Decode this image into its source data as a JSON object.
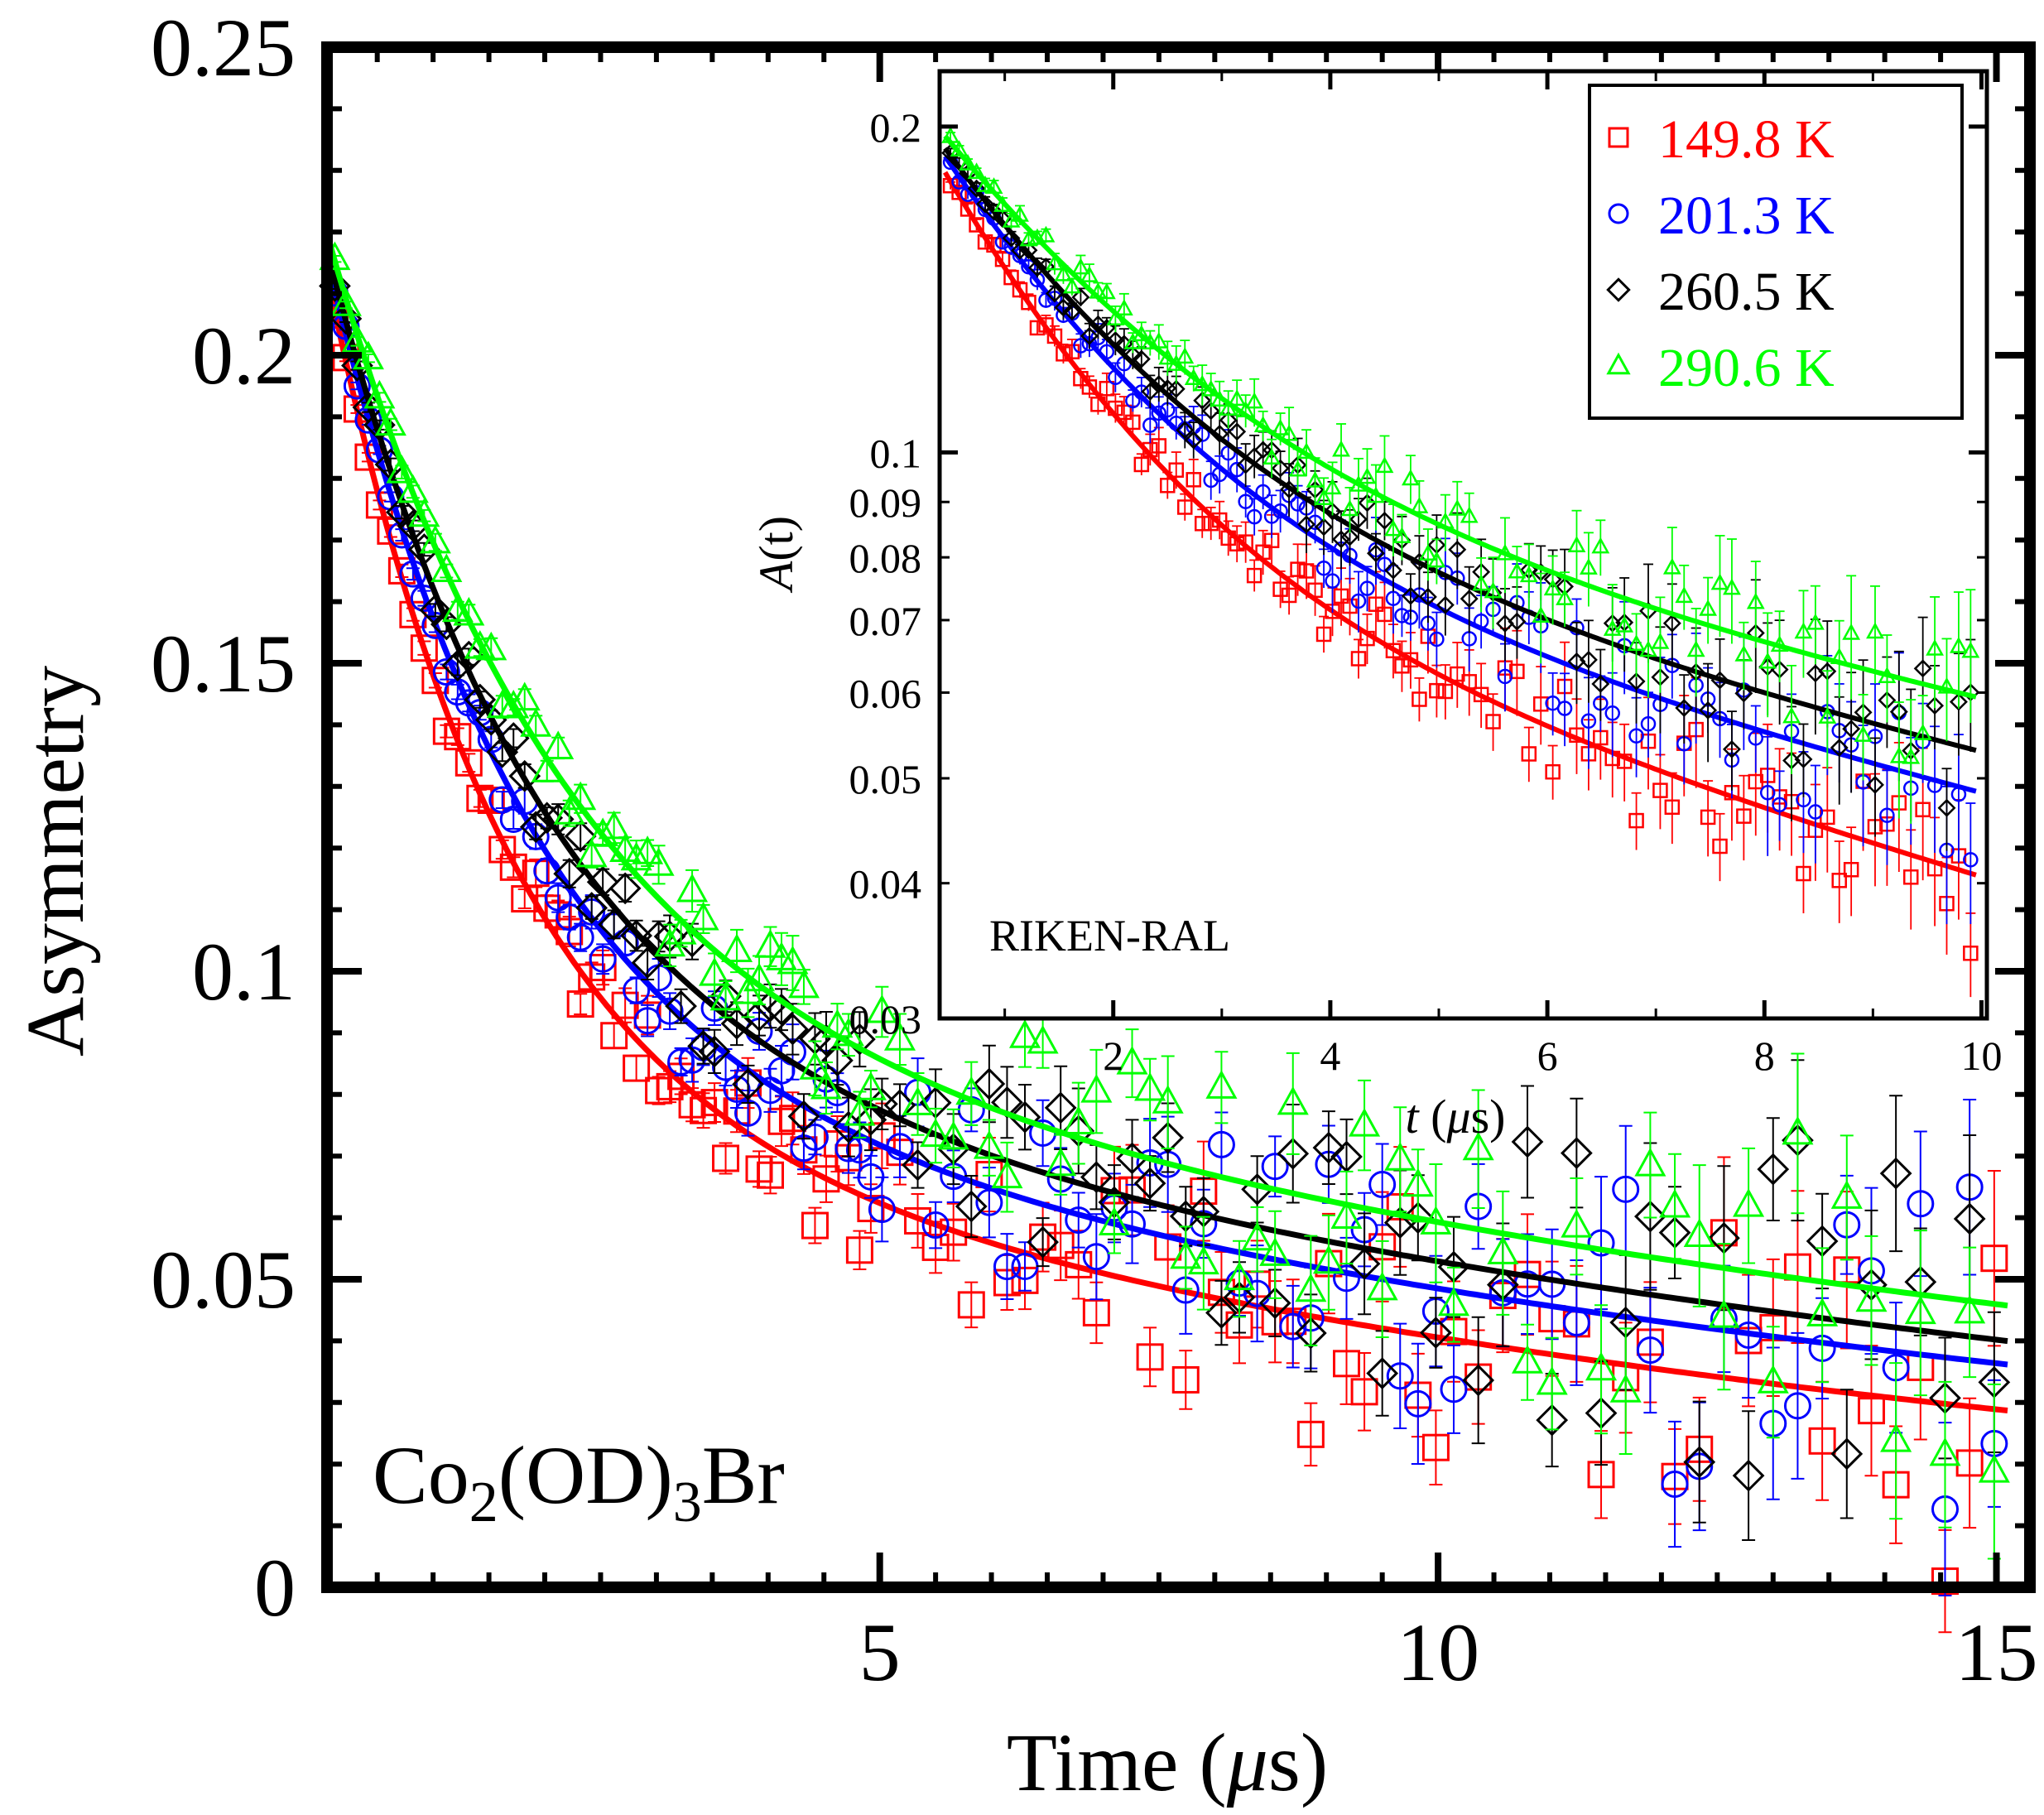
{
  "chart_data": [
    {
      "type": "scatter",
      "panel": "main",
      "xlabel_text": "Time (",
      "xlabel_mu": "μ",
      "xlabel_unit": "s)",
      "ylabel": "Asymmetry",
      "xlim": [
        0.05,
        15.3
      ],
      "ylim": [
        0,
        0.25
      ],
      "x_ticks": [
        5,
        10,
        15
      ],
      "x_tick_labels": [
        "5",
        "10",
        "15"
      ],
      "y_ticks": [
        0,
        0.05,
        0.1,
        0.15,
        0.2,
        0.25
      ],
      "y_tick_labels": [
        "0",
        "0.05",
        "0.1",
        "0.15",
        "0.2",
        "0.25"
      ],
      "annotation": {
        "base": "Co",
        "sub1": "2",
        "mid": "(OD)",
        "sub2": "3",
        "tail": "Br"
      },
      "series": [
        {
          "name": "149.8 K",
          "color": "#ff0000",
          "marker": "square",
          "a0": 0.218,
          "fast_fraction": 0.64,
          "tau_fast": 1.6,
          "tau_slow": 15.0
        },
        {
          "name": "201.3 K",
          "color": "#0000ff",
          "marker": "circle",
          "a0": 0.22,
          "fast_fraction": 0.62,
          "tau_fast": 1.8,
          "tau_slow": 18.0
        },
        {
          "name": "260.5 K",
          "color": "#000000",
          "marker": "diamond",
          "a0": 0.221,
          "fast_fraction": 0.6,
          "tau_fast": 1.9,
          "tau_slow": 19.0
        },
        {
          "name": "290.6 K",
          "color": "#00ff00",
          "marker": "triangle",
          "a0": 0.223,
          "fast_fraction": 0.58,
          "tau_fast": 2.1,
          "tau_slow": 21.0
        }
      ]
    },
    {
      "type": "scatter",
      "panel": "inset",
      "xlabel_var": "t",
      "xlabel_open": " (",
      "xlabel_mu": "μ",
      "xlabel_unit": "s)",
      "ylabel_var": "A",
      "ylabel_rest": "(t)",
      "yscale": "log",
      "xlim": [
        0.4,
        10.05
      ],
      "ylim": [
        0.03,
        0.225
      ],
      "x_ticks": [
        2,
        4,
        6,
        8,
        10
      ],
      "x_tick_labels": [
        "2",
        "4",
        "6",
        "8",
        "10"
      ],
      "y_ticks": [
        0.03,
        0.04,
        0.05,
        0.06,
        0.07,
        0.08,
        0.09,
        0.1,
        0.2
      ],
      "y_tick_labels": [
        "0.03",
        "0.04",
        "0.05",
        "0.06",
        "0.07",
        "0.08",
        "0.09",
        "0.1",
        "0.2"
      ],
      "annotation": "RIKEN-RAL",
      "legend": {
        "position": "top-right",
        "entries": [
          "149.8 K",
          "201.3 K",
          "260.5 K",
          "290.6 K"
        ]
      }
    }
  ]
}
